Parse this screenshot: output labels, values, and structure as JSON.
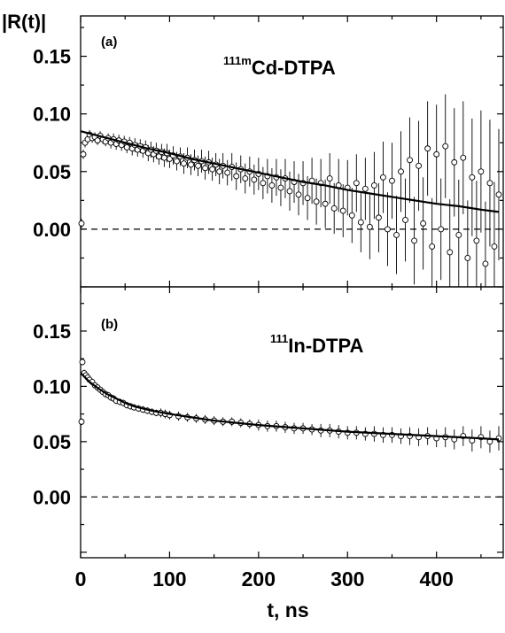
{
  "chart_data": [
    {
      "type": "scatter",
      "panel_label": "(a)",
      "sample_label": {
        "superscript": "111m",
        "main": "Cd-DTPA"
      },
      "ylabel": "|R(t)|",
      "xlim": [
        0,
        475
      ],
      "ylim": [
        -0.05,
        0.185
      ],
      "yticks": [
        "0.00",
        "0.05",
        "0.10",
        "0.15"
      ],
      "yticks_values": [
        0.0,
        0.05,
        0.1,
        0.15
      ],
      "reference_line_y": 0.0,
      "series": [
        {
          "kind": "data",
          "points": [
            [
              1,
              0.005
            ],
            [
              3,
              0.065
            ],
            [
              5,
              0.075
            ],
            [
              8,
              0.078
            ],
            [
              10,
              0.082
            ],
            [
              13,
              0.079
            ],
            [
              16,
              0.08
            ],
            [
              19,
              0.077
            ],
            [
              22,
              0.081
            ],
            [
              25,
              0.078
            ],
            [
              28,
              0.076
            ],
            [
              31,
              0.079
            ],
            [
              34,
              0.075
            ],
            [
              37,
              0.078
            ],
            [
              40,
              0.074
            ],
            [
              43,
              0.077
            ],
            [
              46,
              0.073
            ],
            [
              49,
              0.076
            ],
            [
              52,
              0.071
            ],
            [
              55,
              0.075
            ],
            [
              58,
              0.07
            ],
            [
              61,
              0.073
            ],
            [
              64,
              0.069
            ],
            [
              67,
              0.072
            ],
            [
              70,
              0.068
            ],
            [
              73,
              0.071
            ],
            [
              76,
              0.066
            ],
            [
              79,
              0.069
            ],
            [
              82,
              0.065
            ],
            [
              85,
              0.068
            ],
            [
              88,
              0.063
            ],
            [
              91,
              0.067
            ],
            [
              94,
              0.062
            ],
            [
              97,
              0.066
            ],
            [
              100,
              0.061
            ],
            [
              104,
              0.064
            ],
            [
              108,
              0.059
            ],
            [
              112,
              0.063
            ],
            [
              116,
              0.057
            ],
            [
              120,
              0.062
            ],
            [
              124,
              0.056
            ],
            [
              128,
              0.06
            ],
            [
              132,
              0.055
            ],
            [
              136,
              0.059
            ],
            [
              140,
              0.053
            ],
            [
              144,
              0.058
            ],
            [
              148,
              0.052
            ],
            [
              152,
              0.056
            ],
            [
              156,
              0.05
            ],
            [
              160,
              0.055
            ],
            [
              165,
              0.049
            ],
            [
              170,
              0.054
            ],
            [
              175,
              0.046
            ],
            [
              180,
              0.052
            ],
            [
              185,
              0.044
            ],
            [
              190,
              0.05
            ],
            [
              195,
              0.043
            ],
            [
              200,
              0.048
            ],
            [
              205,
              0.04
            ],
            [
              210,
              0.046
            ],
            [
              215,
              0.038
            ],
            [
              220,
              0.045
            ],
            [
              225,
              0.036
            ],
            [
              230,
              0.044
            ],
            [
              235,
              0.033
            ],
            [
              240,
              0.041
            ],
            [
              245,
              0.03
            ],
            [
              250,
              0.04
            ],
            [
              255,
              0.027
            ],
            [
              260,
              0.042
            ],
            [
              265,
              0.024
            ],
            [
              270,
              0.04
            ],
            [
              275,
              0.022
            ],
            [
              280,
              0.044
            ],
            [
              285,
              0.018
            ],
            [
              290,
              0.038
            ],
            [
              295,
              0.016
            ],
            [
              300,
              0.036
            ],
            [
              305,
              0.012
            ],
            [
              310,
              0.04
            ],
            [
              315,
              0.006
            ],
            [
              320,
              0.035
            ],
            [
              325,
              0.002
            ],
            [
              330,
              0.038
            ],
            [
              335,
              0.01
            ],
            [
              340,
              0.045
            ],
            [
              345,
              0.0
            ],
            [
              350,
              0.042
            ],
            [
              355,
              -0.005
            ],
            [
              360,
              0.05
            ],
            [
              365,
              0.008
            ],
            [
              370,
              0.06
            ],
            [
              375,
              -0.01
            ],
            [
              380,
              0.055
            ],
            [
              385,
              0.005
            ],
            [
              390,
              0.07
            ],
            [
              395,
              -0.015
            ],
            [
              400,
              0.065
            ],
            [
              405,
              0.0
            ],
            [
              410,
              0.072
            ],
            [
              415,
              -0.02
            ],
            [
              420,
              0.058
            ],
            [
              425,
              -0.005
            ],
            [
              430,
              0.062
            ],
            [
              435,
              -0.025
            ],
            [
              440,
              0.045
            ],
            [
              445,
              -0.01
            ],
            [
              450,
              0.05
            ],
            [
              455,
              -0.03
            ],
            [
              460,
              0.04
            ],
            [
              465,
              -0.015
            ],
            [
              470,
              0.03
            ]
          ],
          "errors": [
            0.004,
            0.004,
            0.004,
            0.004,
            0.004,
            0.004,
            0.004,
            0.004,
            0.004,
            0.004,
            0.004,
            0.004,
            0.005,
            0.005,
            0.005,
            0.005,
            0.005,
            0.005,
            0.005,
            0.005,
            0.006,
            0.006,
            0.006,
            0.006,
            0.006,
            0.006,
            0.007,
            0.007,
            0.007,
            0.007,
            0.007,
            0.007,
            0.008,
            0.008,
            0.008,
            0.008,
            0.008,
            0.008,
            0.009,
            0.009,
            0.009,
            0.009,
            0.009,
            0.01,
            0.01,
            0.01,
            0.01,
            0.01,
            0.011,
            0.011,
            0.011,
            0.012,
            0.012,
            0.012,
            0.013,
            0.013,
            0.013,
            0.014,
            0.014,
            0.015,
            0.015,
            0.016,
            0.016,
            0.017,
            0.017,
            0.018,
            0.018,
            0.019,
            0.019,
            0.02,
            0.02,
            0.021,
            0.021,
            0.022,
            0.022,
            0.023,
            0.023,
            0.024,
            0.024,
            0.025,
            0.026,
            0.027,
            0.028,
            0.029,
            0.03,
            0.031,
            0.032,
            0.033,
            0.034,
            0.035,
            0.036,
            0.037,
            0.038,
            0.039,
            0.04,
            0.041,
            0.042,
            0.043,
            0.044,
            0.045,
            0.046,
            0.047,
            0.048,
            0.049,
            0.05,
            0.051,
            0.052,
            0.053,
            0.054,
            0.055,
            0.056,
            0.057
          ]
        },
        {
          "kind": "fit",
          "points": [
            [
              0,
              0.085
            ],
            [
              25,
              0.08
            ],
            [
              50,
              0.075
            ],
            [
              75,
              0.07
            ],
            [
              100,
              0.066
            ],
            [
              125,
              0.061
            ],
            [
              150,
              0.057
            ],
            [
              175,
              0.053
            ],
            [
              200,
              0.049
            ],
            [
              225,
              0.045
            ],
            [
              250,
              0.041
            ],
            [
              275,
              0.038
            ],
            [
              300,
              0.034
            ],
            [
              325,
              0.031
            ],
            [
              350,
              0.028
            ],
            [
              375,
              0.025
            ],
            [
              400,
              0.022
            ],
            [
              425,
              0.02
            ],
            [
              450,
              0.017
            ],
            [
              470,
              0.015
            ]
          ]
        }
      ]
    },
    {
      "type": "scatter",
      "panel_label": "(b)",
      "sample_label": {
        "superscript": "111",
        "main": "In-DTPA"
      },
      "xlabel": "t, ns",
      "xlim": [
        0,
        475
      ],
      "xticks": [
        "0",
        "100",
        "200",
        "300",
        "400"
      ],
      "xticks_values": [
        0,
        100,
        200,
        300,
        400
      ],
      "ylim": [
        -0.055,
        0.19
      ],
      "yticks": [
        "0.00",
        "0.05",
        "0.10",
        "0.15"
      ],
      "yticks_values": [
        0.0,
        0.05,
        0.1,
        0.15
      ],
      "reference_line_y": 0.0,
      "series": [
        {
          "kind": "data",
          "points": [
            [
              1,
              0.068
            ],
            [
              2,
              0.122
            ],
            [
              4,
              0.112
            ],
            [
              6,
              0.11
            ],
            [
              8,
              0.108
            ],
            [
              10,
              0.106
            ],
            [
              13,
              0.104
            ],
            [
              16,
              0.101
            ],
            [
              19,
              0.099
            ],
            [
              22,
              0.097
            ],
            [
              25,
              0.095
            ],
            [
              28,
              0.093
            ],
            [
              31,
              0.092
            ],
            [
              34,
              0.09
            ],
            [
              37,
              0.089
            ],
            [
              40,
              0.087
            ],
            [
              44,
              0.086
            ],
            [
              48,
              0.085
            ],
            [
              52,
              0.083
            ],
            [
              56,
              0.082
            ],
            [
              60,
              0.081
            ],
            [
              65,
              0.08
            ],
            [
              70,
              0.079
            ],
            [
              75,
              0.078
            ],
            [
              80,
              0.077
            ],
            [
              85,
              0.076
            ],
            [
              90,
              0.076
            ],
            [
              95,
              0.075
            ],
            [
              100,
              0.074
            ],
            [
              110,
              0.073
            ],
            [
              120,
              0.072
            ],
            [
              130,
              0.071
            ],
            [
              140,
              0.07
            ],
            [
              150,
              0.069
            ],
            [
              160,
              0.068
            ],
            [
              170,
              0.068
            ],
            [
              180,
              0.067
            ],
            [
              190,
              0.066
            ],
            [
              200,
              0.065
            ],
            [
              210,
              0.064
            ],
            [
              220,
              0.064
            ],
            [
              230,
              0.063
            ],
            [
              240,
              0.062
            ],
            [
              250,
              0.062
            ],
            [
              260,
              0.061
            ],
            [
              270,
              0.06
            ],
            [
              280,
              0.06
            ],
            [
              290,
              0.059
            ],
            [
              300,
              0.058
            ],
            [
              310,
              0.058
            ],
            [
              320,
              0.057
            ],
            [
              330,
              0.057
            ],
            [
              340,
              0.056
            ],
            [
              350,
              0.056
            ],
            [
              360,
              0.055
            ],
            [
              370,
              0.055
            ],
            [
              380,
              0.054
            ],
            [
              390,
              0.055
            ],
            [
              400,
              0.053
            ],
            [
              410,
              0.054
            ],
            [
              420,
              0.052
            ],
            [
              430,
              0.055
            ],
            [
              440,
              0.051
            ],
            [
              450,
              0.054
            ],
            [
              460,
              0.05
            ],
            [
              470,
              0.053
            ]
          ],
          "errors": [
            0.003,
            0.003,
            0.003,
            0.003,
            0.003,
            0.003,
            0.003,
            0.003,
            0.003,
            0.003,
            0.003,
            0.003,
            0.003,
            0.003,
            0.003,
            0.003,
            0.003,
            0.003,
            0.003,
            0.003,
            0.003,
            0.003,
            0.003,
            0.003,
            0.003,
            0.003,
            0.004,
            0.004,
            0.004,
            0.004,
            0.004,
            0.004,
            0.004,
            0.004,
            0.004,
            0.004,
            0.004,
            0.004,
            0.005,
            0.005,
            0.005,
            0.005,
            0.005,
            0.005,
            0.005,
            0.006,
            0.006,
            0.006,
            0.006,
            0.006,
            0.006,
            0.007,
            0.007,
            0.007,
            0.007,
            0.008,
            0.008,
            0.008,
            0.008,
            0.009,
            0.009,
            0.009,
            0.01,
            0.01,
            0.01,
            0.011
          ]
        },
        {
          "kind": "fit",
          "points": [
            [
              0,
              0.112
            ],
            [
              5,
              0.108
            ],
            [
              10,
              0.104
            ],
            [
              20,
              0.098
            ],
            [
              30,
              0.093
            ],
            [
              40,
              0.089
            ],
            [
              50,
              0.085
            ],
            [
              60,
              0.082
            ],
            [
              80,
              0.078
            ],
            [
              100,
              0.075
            ],
            [
              125,
              0.072
            ],
            [
              150,
              0.069
            ],
            [
              175,
              0.067
            ],
            [
              200,
              0.065
            ],
            [
              250,
              0.062
            ],
            [
              300,
              0.059
            ],
            [
              350,
              0.057
            ],
            [
              400,
              0.055
            ],
            [
              450,
              0.053
            ],
            [
              470,
              0.052
            ]
          ]
        }
      ]
    }
  ]
}
